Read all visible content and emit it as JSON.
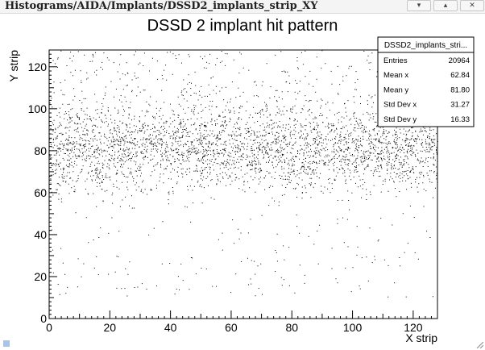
{
  "window": {
    "title": "Histograms/AIDA/Implants/DSSD2_implants_strip_XY",
    "buttons": {
      "minimize": "▾",
      "maximize": "▴",
      "close": "✕"
    }
  },
  "stats": {
    "name": "DSSD2_implants_stri...",
    "rows": [
      {
        "label": "Entries",
        "value": "20964"
      },
      {
        "label": "Mean x",
        "value": "62.84"
      },
      {
        "label": "Mean y",
        "value": "81.80"
      },
      {
        "label": "Std Dev x",
        "value": "31.27"
      },
      {
        "label": "Std Dev y",
        "value": "16.33"
      }
    ]
  },
  "colors": {
    "points": "#000000",
    "axes": "#000000",
    "grip": "#a7c5e8"
  },
  "chart_data": {
    "type": "scatter",
    "title": "DSSD 2 implant hit pattern",
    "xlabel": "X strip",
    "ylabel": "Y strip",
    "xlim": [
      0,
      128
    ],
    "ylim": [
      0,
      128
    ],
    "xticks": [
      0,
      20,
      40,
      60,
      80,
      100,
      120
    ],
    "yticks": [
      0,
      20,
      40,
      60,
      80,
      100,
      120
    ],
    "grid": false,
    "entries": 20964,
    "mean_x": 62.84,
    "mean_y": 81.8,
    "std_x": 31.27,
    "std_y": 16.33
  }
}
